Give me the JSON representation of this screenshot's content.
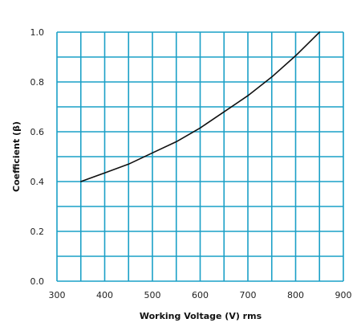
{
  "chart_data": {
    "type": "line",
    "title": "",
    "xlabel": "Working Voltage (V) rms",
    "ylabel": "Coefficient (β)",
    "xlim": [
      300,
      900
    ],
    "ylim": [
      0.0,
      1.0
    ],
    "x_ticks": [
      300,
      400,
      500,
      600,
      700,
      800,
      900
    ],
    "x_tick_labels": [
      "300",
      "400",
      "500",
      "600",
      "700",
      "800",
      "900"
    ],
    "y_ticks": [
      0.0,
      0.2,
      0.4,
      0.6,
      0.8,
      1.0
    ],
    "y_tick_labels": [
      "0.0",
      "0.2",
      "0.4",
      "0.6",
      "0.8",
      "1.0"
    ],
    "x_grid_step": 50,
    "y_grid_step": 0.1,
    "grid": true,
    "legend": "none",
    "colors": {
      "grid": "#1aa0c7",
      "line": "#111111"
    },
    "series": [
      {
        "x": [
          350,
          400,
          450,
          500,
          550,
          600,
          650,
          700,
          750,
          800,
          850
        ],
        "y": [
          0.4,
          0.435,
          0.47,
          0.515,
          0.56,
          0.615,
          0.68,
          0.745,
          0.82,
          0.905,
          1.0
        ]
      }
    ]
  }
}
